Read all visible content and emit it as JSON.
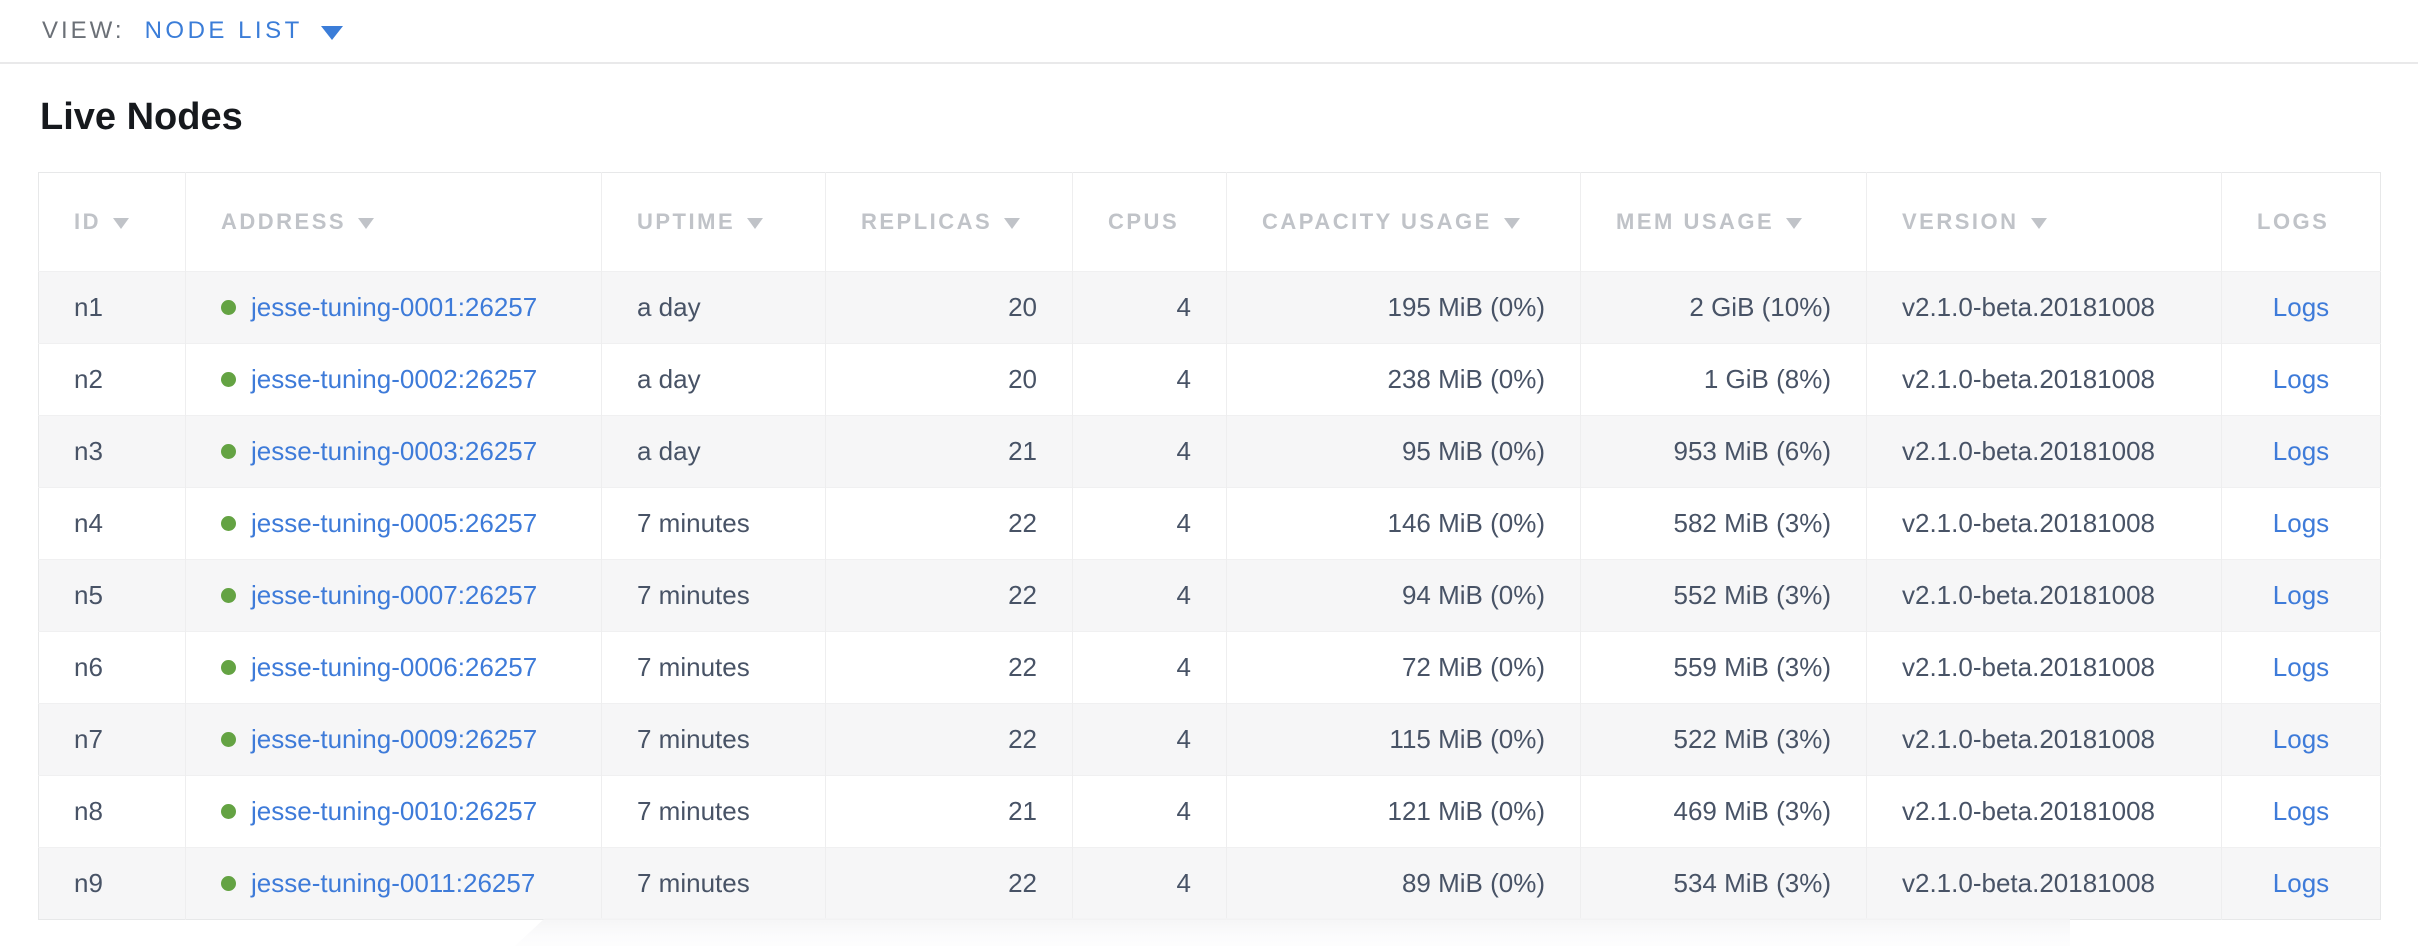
{
  "view_bar": {
    "label": "VIEW:",
    "selected": "NODE LIST"
  },
  "page": {
    "title": "Live Nodes"
  },
  "table": {
    "columns": [
      {
        "label": "ID",
        "sortable": true
      },
      {
        "label": "ADDRESS",
        "sortable": true
      },
      {
        "label": "UPTIME",
        "sortable": true
      },
      {
        "label": "REPLICAS",
        "sortable": true
      },
      {
        "label": "CPUS",
        "sortable": false
      },
      {
        "label": "CAPACITY USAGE",
        "sortable": true
      },
      {
        "label": "MEM USAGE",
        "sortable": true
      },
      {
        "label": "VERSION",
        "sortable": true
      },
      {
        "label": "LOGS",
        "sortable": false
      }
    ],
    "rows": [
      {
        "id": "n1",
        "status": "live",
        "address": "jesse-tuning-0001:26257",
        "uptime": "a day",
        "replicas": "20",
        "cpus": "4",
        "capacity": "195 MiB (0%)",
        "mem": "2 GiB (10%)",
        "version": "v2.1.0-beta.20181008",
        "logs": "Logs"
      },
      {
        "id": "n2",
        "status": "live",
        "address": "jesse-tuning-0002:26257",
        "uptime": "a day",
        "replicas": "20",
        "cpus": "4",
        "capacity": "238 MiB (0%)",
        "mem": "1 GiB (8%)",
        "version": "v2.1.0-beta.20181008",
        "logs": "Logs"
      },
      {
        "id": "n3",
        "status": "live",
        "address": "jesse-tuning-0003:26257",
        "uptime": "a day",
        "replicas": "21",
        "cpus": "4",
        "capacity": "95 MiB (0%)",
        "mem": "953 MiB (6%)",
        "version": "v2.1.0-beta.20181008",
        "logs": "Logs"
      },
      {
        "id": "n4",
        "status": "live",
        "address": "jesse-tuning-0005:26257",
        "uptime": "7 minutes",
        "replicas": "22",
        "cpus": "4",
        "capacity": "146 MiB (0%)",
        "mem": "582 MiB (3%)",
        "version": "v2.1.0-beta.20181008",
        "logs": "Logs"
      },
      {
        "id": "n5",
        "status": "live",
        "address": "jesse-tuning-0007:26257",
        "uptime": "7 minutes",
        "replicas": "22",
        "cpus": "4",
        "capacity": "94 MiB (0%)",
        "mem": "552 MiB (3%)",
        "version": "v2.1.0-beta.20181008",
        "logs": "Logs"
      },
      {
        "id": "n6",
        "status": "live",
        "address": "jesse-tuning-0006:26257",
        "uptime": "7 minutes",
        "replicas": "22",
        "cpus": "4",
        "capacity": "72 MiB (0%)",
        "mem": "559 MiB (3%)",
        "version": "v2.1.0-beta.20181008",
        "logs": "Logs"
      },
      {
        "id": "n7",
        "status": "live",
        "address": "jesse-tuning-0009:26257",
        "uptime": "7 minutes",
        "replicas": "22",
        "cpus": "4",
        "capacity": "115 MiB (0%)",
        "mem": "522 MiB (3%)",
        "version": "v2.1.0-beta.20181008",
        "logs": "Logs"
      },
      {
        "id": "n8",
        "status": "live",
        "address": "jesse-tuning-0010:26257",
        "uptime": "7 minutes",
        "replicas": "21",
        "cpus": "4",
        "capacity": "121 MiB (0%)",
        "mem": "469 MiB (3%)",
        "version": "v2.1.0-beta.20181008",
        "logs": "Logs"
      },
      {
        "id": "n9",
        "status": "live",
        "address": "jesse-tuning-0011:26257",
        "uptime": "7 minutes",
        "replicas": "22",
        "cpus": "4",
        "capacity": "89 MiB (0%)",
        "mem": "534 MiB (3%)",
        "version": "v2.1.0-beta.20181008",
        "logs": "Logs"
      }
    ]
  },
  "colors": {
    "accent_blue": "#3e7bd9",
    "dropdown_blue": "#3b7dd8",
    "status_live_green": "#64a343",
    "header_text_gray": "#c0c3c8",
    "cell_text": "#485366",
    "row_alt_bg": "#f6f6f7",
    "table_border": "#e7e8e9"
  }
}
